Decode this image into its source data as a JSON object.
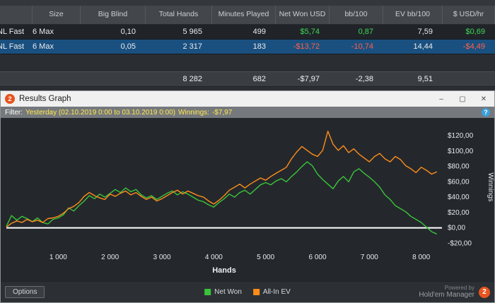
{
  "colors": {
    "positive": "#3fd857",
    "negative": "#ff6247",
    "selected_row": "#1a5080",
    "filter_highlight": "#ffe94f",
    "zero_line": "#ffffff"
  },
  "top_table": {
    "columns": [
      "",
      "Size",
      "Big Blind",
      "Total Hands",
      "Minutes Played",
      "Net Won USD",
      "bb/100",
      "EV bb/100",
      "$ USD/hr"
    ],
    "rows": [
      {
        "game": "NL Fast",
        "size": "6 Max",
        "big_blind": "0,10",
        "total_hands": "5 965",
        "minutes_played": "499",
        "net_won_usd": "$5,74",
        "bb_100": "0,87",
        "ev_bb_100": "7,59",
        "usd_hr": "$0,69"
      },
      {
        "game": "NL Fast",
        "size": "6 Max",
        "big_blind": "0,05",
        "total_hands": "2 317",
        "minutes_played": "183",
        "net_won_usd": "-$13,72",
        "bb_100": "-10,74",
        "ev_bb_100": "14,44",
        "usd_hr": "-$4,49"
      }
    ],
    "totals": {
      "total_hands": "8 282",
      "minutes_played": "682",
      "net_won_usd": "-$7,97",
      "bb_100": "-2,38",
      "ev_bb_100": "9,51"
    }
  },
  "graph_window": {
    "title": "Results Graph",
    "logo_text": "2",
    "buttons": {
      "minimize": "–",
      "maximize": "▢",
      "close": "✕"
    },
    "filter": {
      "label": "Filter:",
      "range": "Yesterday (02.10.2019 0:00 to 03.10.2019 0:00)",
      "winnings_label": "Winnings:",
      "winnings_value": "-$7,97",
      "help": "?"
    },
    "options_button": "Options",
    "powered_by": "Powered by",
    "brand": "Hold'em Manager",
    "brand_logo": "2"
  },
  "chart_data": {
    "type": "line",
    "title": "",
    "xlabel": "Hands",
    "ylabel": "Winnings",
    "xlim": [
      0,
      8400
    ],
    "ylim": [
      -28,
      134
    ],
    "grid": false,
    "zero_line": true,
    "legend_position": "bottom",
    "x_ticks": [
      {
        "v": 1000,
        "label": "1 000"
      },
      {
        "v": 2000,
        "label": "2 000"
      },
      {
        "v": 3000,
        "label": "3 000"
      },
      {
        "v": 4000,
        "label": "4 000"
      },
      {
        "v": 5000,
        "label": "5 000"
      },
      {
        "v": 6000,
        "label": "6 000"
      },
      {
        "v": 7000,
        "label": "7 000"
      },
      {
        "v": 8000,
        "label": "8 000"
      }
    ],
    "y_ticks": [
      {
        "v": 120,
        "label": "$120,00"
      },
      {
        "v": 100,
        "label": "$100,00"
      },
      {
        "v": 80,
        "label": "$80,00"
      },
      {
        "v": 60,
        "label": "$60,00"
      },
      {
        "v": 40,
        "label": "$40,00"
      },
      {
        "v": 20,
        "label": "$20,00"
      },
      {
        "v": 0,
        "label": "$0,00"
      },
      {
        "v": -20,
        "label": "-$20,00"
      }
    ],
    "x_start": 0,
    "x_step": 100,
    "final_hands": 8282,
    "final_net_won": -7.97,
    "series": [
      {
        "name": "Net Won",
        "color": "#3ac43a",
        "y": [
          2,
          16,
          10,
          15,
          12,
          8,
          13,
          7,
          5,
          11,
          13,
          17,
          26,
          22,
          29,
          35,
          42,
          38,
          44,
          40,
          45,
          50,
          46,
          52,
          47,
          50,
          43,
          39,
          42,
          37,
          41,
          45,
          48,
          43,
          47,
          44,
          40,
          36,
          34,
          30,
          27,
          33,
          38,
          44,
          40,
          46,
          49,
          44,
          50,
          56,
          59,
          56,
          61,
          64,
          60,
          67,
          73,
          80,
          86,
          81,
          70,
          63,
          57,
          51,
          61,
          67,
          60,
          73,
          77,
          71,
          66,
          60,
          53,
          43,
          37,
          29,
          25,
          21,
          15,
          11,
          7,
          1,
          -5,
          -8
        ]
      },
      {
        "name": "All-In EV",
        "color": "#ff8c1a",
        "y": [
          1,
          6,
          9,
          7,
          11,
          8,
          10,
          7,
          12,
          13,
          15,
          19,
          25,
          28,
          33,
          41,
          46,
          42,
          39,
          37,
          44,
          41,
          45,
          48,
          43,
          46,
          41,
          37,
          40,
          35,
          38,
          42,
          46,
          49,
          44,
          48,
          45,
          42,
          40,
          35,
          31,
          36,
          42,
          49,
          53,
          57,
          52,
          57,
          61,
          65,
          62,
          67,
          71,
          75,
          79,
          90,
          99,
          106,
          101,
          96,
          93,
          101,
          126,
          109,
          101,
          107,
          98,
          103,
          96,
          91,
          86,
          93,
          97,
          90,
          86,
          93,
          89,
          81,
          77,
          72,
          79,
          75,
          70,
          73
        ]
      }
    ]
  }
}
